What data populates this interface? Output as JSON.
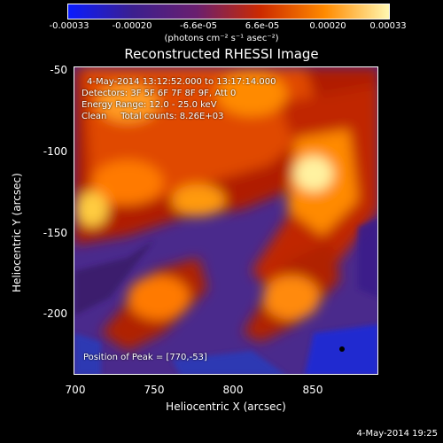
{
  "colorbar": {
    "ticks": [
      "-0.00033",
      "-0.00020",
      "-6.6e-05",
      "6.6e-05",
      "0.00020",
      "0.00033"
    ],
    "units": "(photons cm⁻² s⁻¹ asec⁻²)",
    "colors": [
      "#0a1cff",
      "#3b1f8f",
      "#6a1f6f",
      "#cc2a00",
      "#ff8a00",
      "#fff7b0"
    ]
  },
  "title": "Reconstructed RHESSI Image",
  "annotation": {
    "line1": "4-May-2014 13:12:52.000 to 13:17:14.000",
    "line2": "Detectors: 3F 5F 6F 7F 8F 9F, Att 0",
    "line3": "Energy Range: 12.0 - 25.0 keV",
    "line4": "Clean     Total counts: 8.26E+03",
    "peak": "Position of Peak = [770,-53]"
  },
  "axes": {
    "xlabel": "Heliocentric X (arcsec)",
    "ylabel": "Heliocentric Y (arcsec)",
    "xticks": [
      "700",
      "750",
      "800",
      "850"
    ],
    "yticks": [
      "-50",
      "-100",
      "-150",
      "-200"
    ],
    "xlim": [
      700,
      890
    ],
    "ylim": [
      -240,
      -47
    ]
  },
  "footer": "4-May-2014 19:25"
}
